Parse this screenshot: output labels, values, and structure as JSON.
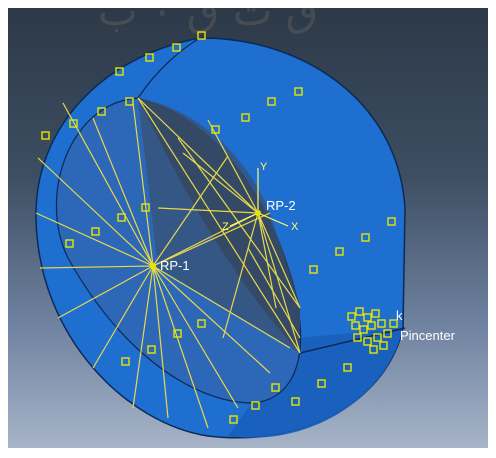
{
  "header": {
    "title_fragment": "ق ت ق ٠ ب"
  },
  "model": {
    "reference_points": [
      {
        "id": "rp1",
        "label": "RP-1"
      },
      {
        "id": "rp2",
        "label": "RP-2"
      }
    ],
    "point_label": "Pincenter",
    "partial_label": "k",
    "axes": {
      "x": "X",
      "y": "Y",
      "z": "Z"
    }
  },
  "colors": {
    "body": "#1f6fd1",
    "body_shadow": "#1656aa",
    "inner": "#2b4a6c",
    "edge": "#0b2a55",
    "mesh": "#e8d84a",
    "marker": "#e6e600",
    "background_top": "#2c3948",
    "background_bottom": "#a7b4c8"
  }
}
